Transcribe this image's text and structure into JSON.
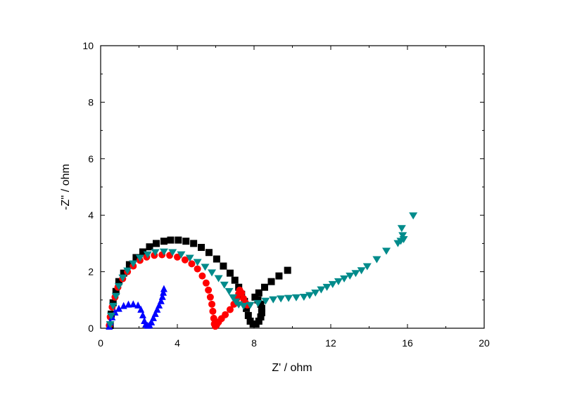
{
  "chart_data": {
    "type": "scatter",
    "title": "",
    "xlabel": "Z' / ohm",
    "ylabel": "-Z'' / ohm",
    "xlim": [
      0,
      20
    ],
    "ylim": [
      0,
      10
    ],
    "x_ticks": [
      0,
      4,
      8,
      12,
      16,
      20
    ],
    "y_ticks": [
      0,
      2,
      4,
      6,
      8,
      10
    ],
    "x_tick_labels": [
      "0",
      "4",
      "8",
      "12",
      "16",
      "20"
    ],
    "y_tick_labels": [
      "0",
      "2",
      "4",
      "6",
      "8",
      "10"
    ],
    "grid": false,
    "legend": "none",
    "series": [
      {
        "marker": "square",
        "color": "#000000",
        "points": [
          [
            0.5,
            0.1
          ],
          [
            0.55,
            0.5
          ],
          [
            0.65,
            0.9
          ],
          [
            0.8,
            1.3
          ],
          [
            0.95,
            1.65
          ],
          [
            1.2,
            1.95
          ],
          [
            1.5,
            2.25
          ],
          [
            1.85,
            2.5
          ],
          [
            2.2,
            2.7
          ],
          [
            2.55,
            2.88
          ],
          [
            2.9,
            3.0
          ],
          [
            3.3,
            3.08
          ],
          [
            3.65,
            3.12
          ],
          [
            4.05,
            3.12
          ],
          [
            4.45,
            3.08
          ],
          [
            4.85,
            3.0
          ],
          [
            5.25,
            2.86
          ],
          [
            5.65,
            2.68
          ],
          [
            6.05,
            2.45
          ],
          [
            6.4,
            2.2
          ],
          [
            6.75,
            1.95
          ],
          [
            7.0,
            1.7
          ],
          [
            7.2,
            1.45
          ],
          [
            7.35,
            1.2
          ],
          [
            7.5,
            0.95
          ],
          [
            7.6,
            0.7
          ],
          [
            7.7,
            0.45
          ],
          [
            7.8,
            0.25
          ],
          [
            7.95,
            0.15
          ],
          [
            8.1,
            0.15
          ],
          [
            8.25,
            0.25
          ],
          [
            8.35,
            0.4
          ],
          [
            8.4,
            0.55
          ],
          [
            8.4,
            0.7
          ],
          [
            8.35,
            0.85
          ],
          [
            8.2,
            1.0
          ],
          [
            8.05,
            1.1
          ],
          [
            8.25,
            1.25
          ],
          [
            8.55,
            1.45
          ],
          [
            8.9,
            1.65
          ],
          [
            9.3,
            1.85
          ],
          [
            9.75,
            2.05
          ]
        ]
      },
      {
        "marker": "circle",
        "color": "#ff0000",
        "points": [
          [
            0.45,
            0.1
          ],
          [
            0.5,
            0.4
          ],
          [
            0.6,
            0.75
          ],
          [
            0.75,
            1.1
          ],
          [
            0.9,
            1.45
          ],
          [
            1.15,
            1.75
          ],
          [
            1.4,
            2.0
          ],
          [
            1.7,
            2.2
          ],
          [
            2.05,
            2.4
          ],
          [
            2.4,
            2.52
          ],
          [
            2.8,
            2.58
          ],
          [
            3.2,
            2.6
          ],
          [
            3.6,
            2.58
          ],
          [
            4.0,
            2.52
          ],
          [
            4.4,
            2.42
          ],
          [
            4.75,
            2.28
          ],
          [
            5.05,
            2.1
          ],
          [
            5.3,
            1.85
          ],
          [
            5.5,
            1.6
          ],
          [
            5.62,
            1.35
          ],
          [
            5.72,
            1.1
          ],
          [
            5.8,
            0.85
          ],
          [
            5.85,
            0.6
          ],
          [
            5.9,
            0.35
          ],
          [
            5.93,
            0.15
          ],
          [
            5.98,
            0.07
          ],
          [
            6.05,
            0.12
          ],
          [
            6.15,
            0.22
          ],
          [
            6.3,
            0.34
          ],
          [
            6.5,
            0.48
          ],
          [
            6.75,
            0.66
          ],
          [
            6.95,
            0.85
          ],
          [
            7.1,
            1.05
          ],
          [
            7.2,
            1.22
          ],
          [
            7.25,
            1.35
          ],
          [
            7.35,
            1.25
          ],
          [
            7.45,
            1.05
          ],
          [
            7.55,
            0.9
          ],
          [
            7.65,
            0.82
          ]
        ]
      },
      {
        "marker": "triangle-up",
        "color": "#0000ff",
        "points": [
          [
            0.45,
            0.05
          ],
          [
            0.5,
            0.2
          ],
          [
            0.6,
            0.38
          ],
          [
            0.75,
            0.55
          ],
          [
            0.95,
            0.68
          ],
          [
            1.2,
            0.78
          ],
          [
            1.45,
            0.83
          ],
          [
            1.7,
            0.84
          ],
          [
            1.95,
            0.8
          ],
          [
            2.1,
            0.65
          ],
          [
            2.2,
            0.45
          ],
          [
            2.28,
            0.25
          ],
          [
            2.35,
            0.12
          ],
          [
            2.45,
            0.08
          ],
          [
            2.55,
            0.1
          ],
          [
            2.65,
            0.2
          ],
          [
            2.75,
            0.35
          ],
          [
            2.85,
            0.5
          ],
          [
            2.95,
            0.65
          ],
          [
            3.05,
            0.8
          ],
          [
            3.15,
            0.95
          ],
          [
            3.22,
            1.1
          ],
          [
            3.27,
            1.25
          ],
          [
            3.3,
            1.38
          ]
        ]
      },
      {
        "marker": "triangle-down",
        "color": "#008b8b",
        "points": [
          [
            0.5,
            0.15
          ],
          [
            0.55,
            0.45
          ],
          [
            0.65,
            0.8
          ],
          [
            0.8,
            1.15
          ],
          [
            0.95,
            1.5
          ],
          [
            1.15,
            1.8
          ],
          [
            1.4,
            2.05
          ],
          [
            1.7,
            2.3
          ],
          [
            2.05,
            2.5
          ],
          [
            2.45,
            2.62
          ],
          [
            2.85,
            2.7
          ],
          [
            3.3,
            2.72
          ],
          [
            3.75,
            2.7
          ],
          [
            4.2,
            2.62
          ],
          [
            4.65,
            2.5
          ],
          [
            5.05,
            2.35
          ],
          [
            5.45,
            2.18
          ],
          [
            5.8,
            1.98
          ],
          [
            6.15,
            1.78
          ],
          [
            6.45,
            1.55
          ],
          [
            6.7,
            1.32
          ],
          [
            6.9,
            1.1
          ],
          [
            7.05,
            0.95
          ],
          [
            7.2,
            0.85
          ],
          [
            7.45,
            0.8
          ],
          [
            7.8,
            0.83
          ],
          [
            8.2,
            0.9
          ],
          [
            8.6,
            0.98
          ],
          [
            9.0,
            1.03
          ],
          [
            9.4,
            1.06
          ],
          [
            9.8,
            1.08
          ],
          [
            10.2,
            1.1
          ],
          [
            10.6,
            1.12
          ],
          [
            10.9,
            1.18
          ],
          [
            11.2,
            1.27
          ],
          [
            11.5,
            1.38
          ],
          [
            11.8,
            1.47
          ],
          [
            12.1,
            1.57
          ],
          [
            12.4,
            1.67
          ],
          [
            12.7,
            1.77
          ],
          [
            13.0,
            1.87
          ],
          [
            13.3,
            1.96
          ],
          [
            13.6,
            2.06
          ],
          [
            13.9,
            2.2
          ],
          [
            14.4,
            2.45
          ],
          [
            14.9,
            2.75
          ],
          [
            15.5,
            3.02
          ],
          [
            15.65,
            3.1
          ],
          [
            15.8,
            3.16
          ],
          [
            15.75,
            3.3
          ],
          [
            15.7,
            3.55
          ],
          [
            16.3,
            4.0
          ]
        ]
      }
    ]
  }
}
